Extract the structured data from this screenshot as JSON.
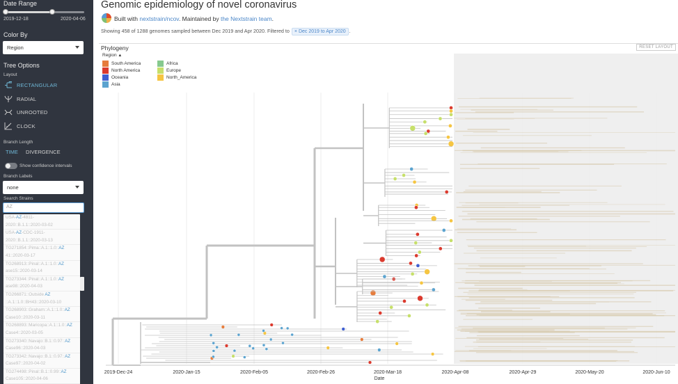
{
  "sidebar": {
    "date_range": {
      "heading": "Date Range",
      "start": "2019-12-18",
      "end": "2020-04-06"
    },
    "color_by": {
      "heading": "Color By",
      "value": "Region"
    },
    "tree_options": {
      "heading": "Tree Options"
    },
    "layout": {
      "heading": "Layout",
      "items": [
        "RECTANGULAR",
        "RADIAL",
        "UNROOTED",
        "CLOCK"
      ],
      "active": "RECTANGULAR"
    },
    "branch_length": {
      "heading": "Branch Length",
      "time": "TIME",
      "divergence": "DIVERGENCE"
    },
    "confidence": {
      "label": "Show confidence intervals"
    },
    "branch_labels": {
      "heading": "Branch Labels",
      "value": "none"
    },
    "search": {
      "heading": "Search Strains",
      "value": "AZ"
    },
    "dropdown": [
      [
        "USA-",
        "AZ",
        "-4811-",
        "2020::B.1.1::2020-03-02"
      ],
      [
        "USA-",
        "AZ",
        "-CDC-1911-",
        "2020::B.1.1::2020-03-13"
      ],
      [
        "TG271854::Pima::A.1::1.0::",
        "AZ",
        "",
        "41::2020-03-17"
      ],
      [
        "TG268913::Pinal::A.1::1.0::",
        "AZ",
        "",
        "ase15::2020-03-14"
      ],
      [
        "TG273344::Pinal::A.1::1.0::",
        "AZ",
        "",
        "ase98::2020-04-03"
      ],
      [
        "TG266871::Outside ",
        "AZ",
        "",
        "::A.1::1.0::BH43::2020-03-10"
      ],
      [
        "TG268903::Graham::A.1::1.0::",
        "AZ",
        "",
        "Case10::2020-03-11"
      ],
      [
        "TG268893::Maricopa::A.1::1.0::",
        "AZ",
        "",
        "Case4::2020-03-05"
      ],
      [
        "TG273340::Navajo::B.1::0.97::",
        "AZ",
        "",
        "Case96::2020-04-03"
      ],
      [
        "TG273342::Navajo::B.1::0.97::",
        "AZ",
        "",
        "Case97::2020-04-02"
      ],
      [
        "TG274498::Pinal::B.1::0.99::",
        "AZ",
        "",
        "Case105::2020-04-06"
      ]
    ]
  },
  "header": {
    "title": "Genomic epidemiology of novel coronavirus",
    "built_prefix": "Built with",
    "built_link": "nextstrain/ncov",
    "maintained_prefix": ". Maintained by",
    "maintained_link": "the Nextstrain team",
    "maintained_suffix": ".",
    "info_text": "Showing 458 of 1288 genomes sampled between Dec 2019 and Apr 2020. Filtered to",
    "filter_chip": "× Dec 2019 to Apr 2020",
    "info_suffix": "."
  },
  "panel": {
    "title": "Phylogeny",
    "reset_label": "RESET LAYOUT",
    "legend_title": "Region",
    "legend": [
      {
        "name": "South America",
        "color": "#e67c3c"
      },
      {
        "name": "North America",
        "color": "#db3a2e"
      },
      {
        "name": "Oceania",
        "color": "#3f5fd1"
      },
      {
        "name": "Asia",
        "color": "#5ba3cf"
      },
      {
        "name": "Africa",
        "color": "#86c98e"
      },
      {
        "name": "Europe",
        "color": "#c6df6a"
      },
      {
        "name": "North_America",
        "color": "#f5c542"
      }
    ]
  },
  "axis": {
    "ticks": [
      "2019-Dec-24",
      "2020-Jan-15",
      "2020-Feb-05",
      "2020-Feb-26",
      "2020-Mar-18",
      "2020-Apr-08",
      "2020-Apr-29",
      "2020-May-20",
      "2020-Jun-10"
    ],
    "label": "Date"
  },
  "colors": {
    "sidebar_bg": "#30353f",
    "active": "#6fb7d6",
    "branch": "#c2c2c2",
    "future_shade": "#efefef",
    "future_branch": "#d8ccb0"
  }
}
